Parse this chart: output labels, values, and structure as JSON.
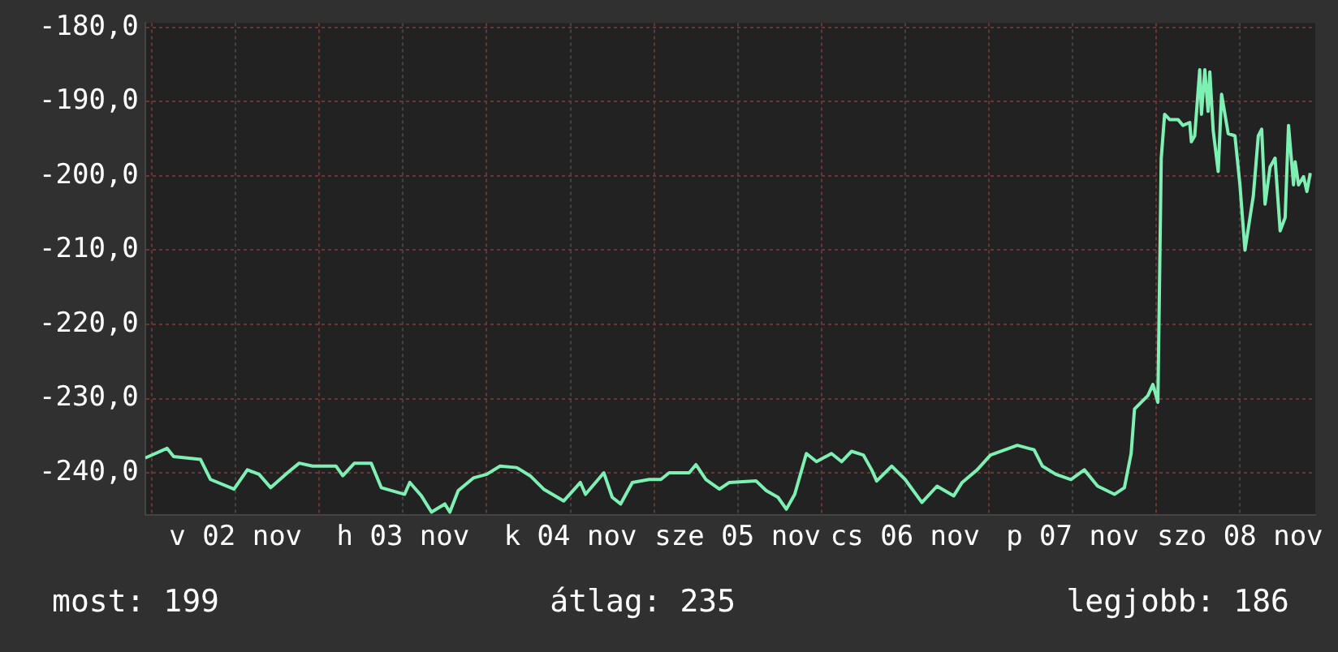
{
  "chart_data": {
    "type": "line",
    "x": [
      "--11-01T23:02",
      "--11-02T02:10",
      "--11-02T03:07",
      "--11-02T06:58",
      "--11-02T08:24",
      "--11-02T11:46",
      "--11-02T13:41",
      "--11-02T15:22",
      "--11-02T17:02",
      "--11-02T19:26",
      "--11-02T21:07",
      "--11-02T23:02",
      "--11-03T02:24",
      "--11-03T03:22",
      "--11-03T05:02",
      "--11-03T07:26",
      "--11-03T08:53",
      "--11-03T12:14",
      "--11-03T12:58",
      "--11-03T14:38",
      "--11-03T16:05",
      "--11-03T18:00",
      "--11-03T18:43",
      "--11-03T19:55",
      "--11-03T22:05",
      "--11-04T00:00",
      "--11-04T01:55",
      "--11-04T04:19",
      "--11-04T06:14",
      "--11-04T08:10",
      "--11-04T11:02",
      "--11-04T13:26",
      "--11-04T14:10",
      "--11-04T16:48",
      "--11-04T18:00",
      "--11-04T19:12",
      "--11-04T20:53",
      "--11-04T23:17",
      "--11-05T00:58",
      "--11-05T02:10",
      "--11-05T05:02",
      "--11-05T06:00",
      "--11-05T07:26",
      "--11-05T09:22",
      "--11-05T10:48",
      "--11-05T14:38",
      "--11-05T16:05",
      "--11-05T17:46",
      "--11-05T18:58",
      "--11-05T20:10",
      "--11-05T21:50",
      "--11-05T23:17",
      "--11-06T01:26",
      "--11-06T02:53",
      "--11-06T04:19",
      "--11-06T06:00",
      "--11-06T07:12",
      "--11-06T07:55",
      "--11-06T10:05",
      "--11-06T12:00",
      "--11-06T14:24",
      "--11-06T16:34",
      "--11-06T18:58",
      "--11-06T20:10",
      "--11-06T22:19",
      "--11-07T00:14",
      "--11-07T04:05",
      "--11-07T06:29",
      "--11-07T07:41",
      "--11-07T09:36",
      "--11-07T11:46",
      "--11-07T13:41",
      "--11-07T15:36",
      "--11-07T18:00",
      "--11-07T19:26",
      "--11-07T20:24",
      "--11-07T20:53",
      "--11-07T22:48",
      "--11-07T23:31",
      "--11-08T00:14",
      "--11-08T00:43",
      "--11-08T01:12",
      "--11-08T01:55",
      "--11-08T03:07",
      "--11-08T03:50",
      "--11-08T04:48",
      "--11-08T05:02",
      "--11-08T05:31",
      "--11-08T06:14",
      "--11-08T06:29",
      "--11-08T06:58",
      "--11-08T07:26",
      "--11-08T07:41",
      "--11-08T08:10",
      "--11-08T08:53",
      "--11-08T09:22",
      "--11-08T10:19",
      "--11-08T11:17",
      "--11-08T12:00",
      "--11-08T12:43",
      "--11-08T13:55",
      "--11-08T14:38",
      "--11-08T15:07",
      "--11-08T15:36",
      "--11-08T16:19",
      "--11-08T17:02",
      "--11-08T17:46",
      "--11-08T18:29",
      "--11-08T18:58",
      "--11-08T19:41",
      "--11-08T19:55",
      "--11-08T20:24",
      "--11-08T21:07",
      "--11-08T21:36",
      "--11-08T22:05"
    ],
    "series": [
      {
        "color": "#7ef0b4",
        "values": [
          -238.0,
          -236.7,
          -237.8,
          -238.2,
          -240.9,
          -242.2,
          -239.6,
          -240.2,
          -242.0,
          -240.0,
          -238.7,
          -239.1,
          -239.1,
          -240.4,
          -238.7,
          -238.7,
          -242.0,
          -242.9,
          -241.3,
          -243.1,
          -245.3,
          -244.2,
          -245.3,
          -242.4,
          -240.7,
          -240.2,
          -239.1,
          -239.3,
          -240.4,
          -242.2,
          -243.8,
          -241.3,
          -242.9,
          -240.0,
          -243.3,
          -244.2,
          -241.3,
          -240.9,
          -240.9,
          -240.0,
          -240.0,
          -238.9,
          -240.9,
          -242.2,
          -241.3,
          -241.1,
          -242.4,
          -243.3,
          -244.9,
          -242.9,
          -237.4,
          -238.5,
          -237.4,
          -238.5,
          -237.1,
          -237.6,
          -239.6,
          -241.1,
          -239.1,
          -240.9,
          -244.0,
          -241.8,
          -243.1,
          -241.3,
          -239.6,
          -237.6,
          -236.3,
          -236.9,
          -239.1,
          -240.2,
          -240.9,
          -239.6,
          -241.8,
          -242.9,
          -242.0,
          -237.4,
          -231.4,
          -229.6,
          -228.1,
          -230.5,
          -197.6,
          -191.7,
          -192.4,
          -192.4,
          -193.2,
          -192.8,
          -195.4,
          -194.6,
          -185.7,
          -191.7,
          -185.7,
          -191.3,
          -186.0,
          -193.9,
          -199.4,
          -189.0,
          -194.3,
          -194.6,
          -201.2,
          -210.0,
          -202.7,
          -194.6,
          -193.7,
          -203.8,
          -198.8,
          -197.6,
          -207.4,
          -205.6,
          -193.2,
          -201.2,
          -198.1,
          -201.2,
          -200.1,
          -202.1,
          -199.6
        ]
      }
    ],
    "xlim": [
      "--11-01T23:02",
      "--11-08T22:48"
    ],
    "xticks": [
      {
        "value": "--11-02",
        "label": null
      },
      {
        "value": "--11-02T12:00",
        "label": "v 02 nov"
      },
      {
        "value": "--11-03",
        "label": null
      },
      {
        "value": "--11-03T12:00",
        "label": "h 03 nov"
      },
      {
        "value": "--11-04",
        "label": null
      },
      {
        "value": "--11-04T12:00",
        "label": "k 04 nov"
      },
      {
        "value": "--11-05",
        "label": null
      },
      {
        "value": "--11-05T12:00",
        "label": "sze 05 nov"
      },
      {
        "value": "--11-06",
        "label": null
      },
      {
        "value": "--11-06T12:00",
        "label": "cs 06 nov"
      },
      {
        "value": "--11-07",
        "label": null
      },
      {
        "value": "--11-07T12:00",
        "label": "p 07 nov"
      },
      {
        "value": "--11-08",
        "label": null
      },
      {
        "value": "--11-08T12:00",
        "label": "szo 08 nov"
      }
    ],
    "ylim": [
      -245.7,
      -179.4
    ],
    "yticks": [
      {
        "value": -240,
        "label": "-240,0"
      },
      {
        "value": -230,
        "label": "-230,0"
      },
      {
        "value": -220,
        "label": "-220,0"
      },
      {
        "value": -210,
        "label": "-210,0"
      },
      {
        "value": -200,
        "label": "-200,0"
      },
      {
        "value": -190,
        "label": "-190,0"
      },
      {
        "value": -180,
        "label": "-180,0"
      }
    ],
    "grid": true,
    "legend": false,
    "marker": "none",
    "line_style": "solid",
    "annotations": [
      "most: 199",
      "átlag: 235",
      "legjobb: 186"
    ]
  }
}
